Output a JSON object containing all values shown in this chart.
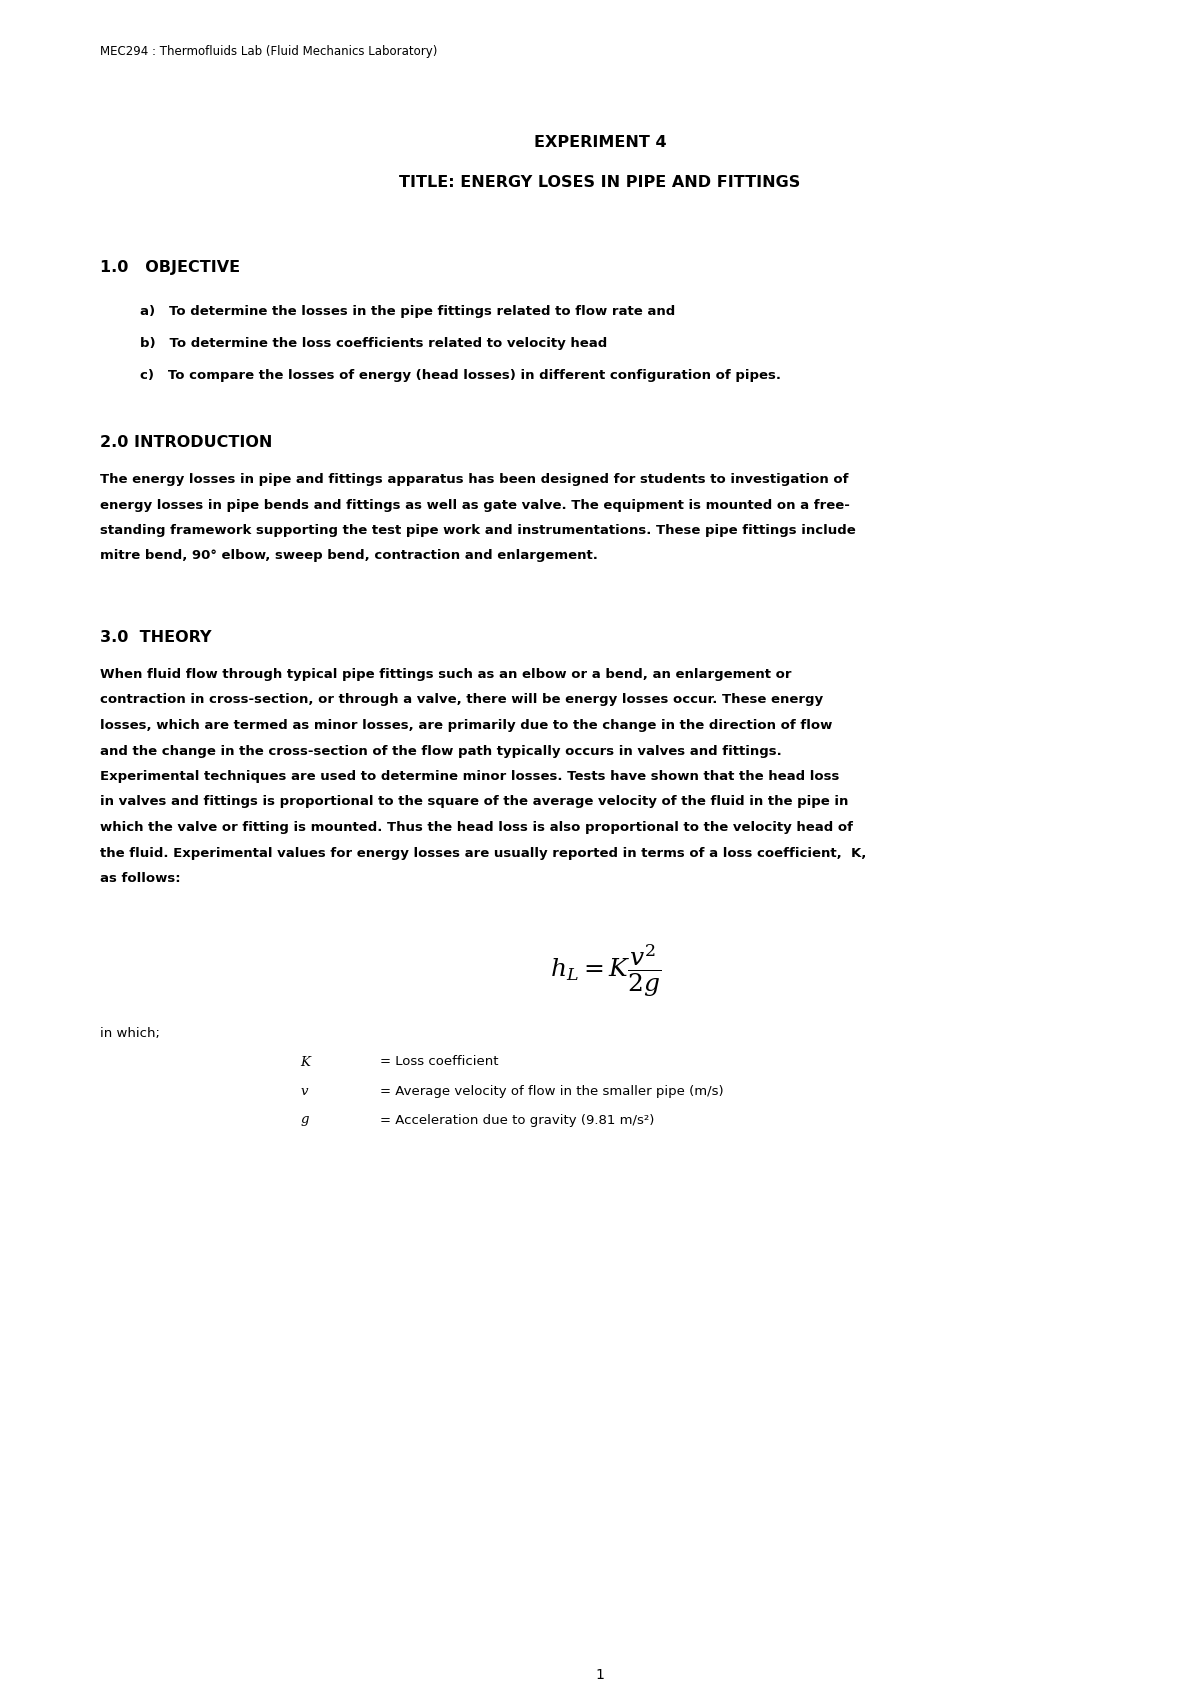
{
  "page_width": 12.0,
  "page_height": 16.98,
  "bg_color": "#ffffff",
  "header": "MEC294 : Thermofluids Lab (Fluid Mechanics Laboratory)",
  "title_line1": "EXPERIMENT 4",
  "title_line2": "TITLE: ENERGY LOSES IN PIPE AND FITTINGS",
  "section1_heading": "1.0   OBJECTIVE",
  "section1_a": "a)   To determine the losses in the pipe fittings related to flow rate and",
  "section1_b": "b)   To determine the loss coefficients related to velocity head",
  "section1_c": "c)   To compare the losses of energy (head losses) in different configuration of pipes.",
  "section2_heading": "2.0 INTRODUCTION",
  "section2_body": [
    "The energy losses in pipe and fittings apparatus has been designed for students to investigation of",
    "energy losses in pipe bends and fittings as well as gate valve. The equipment is mounted on a free-",
    "standing framework supporting the test pipe work and instrumentations. These pipe fittings include",
    "mitre bend, 90° elbow, sweep bend, contraction and enlargement."
  ],
  "section3_heading": "3.0  THEORY",
  "section3_body": [
    "When fluid flow through typical pipe fittings such as an elbow or a bend, an enlargement or",
    "contraction in cross-section, or through a valve, there will be energy losses occur. These energy",
    "losses, which are termed as minor losses, are primarily due to the change in the direction of flow",
    "and the change in the cross-section of the flow path typically occurs in valves and fittings.",
    "Experimental techniques are used to determine minor losses. Tests have shown that the head loss",
    "in valves and fittings is proportional to the square of the average velocity of the fluid in the pipe in",
    "which the valve or fitting is mounted. Thus the head loss is also proportional to the velocity head of",
    "the fluid. Experimental values for energy losses are usually reported in terms of a loss coefficient,  K,",
    "as follows:"
  ],
  "in_which_label": "in which;",
  "page_number": "1"
}
